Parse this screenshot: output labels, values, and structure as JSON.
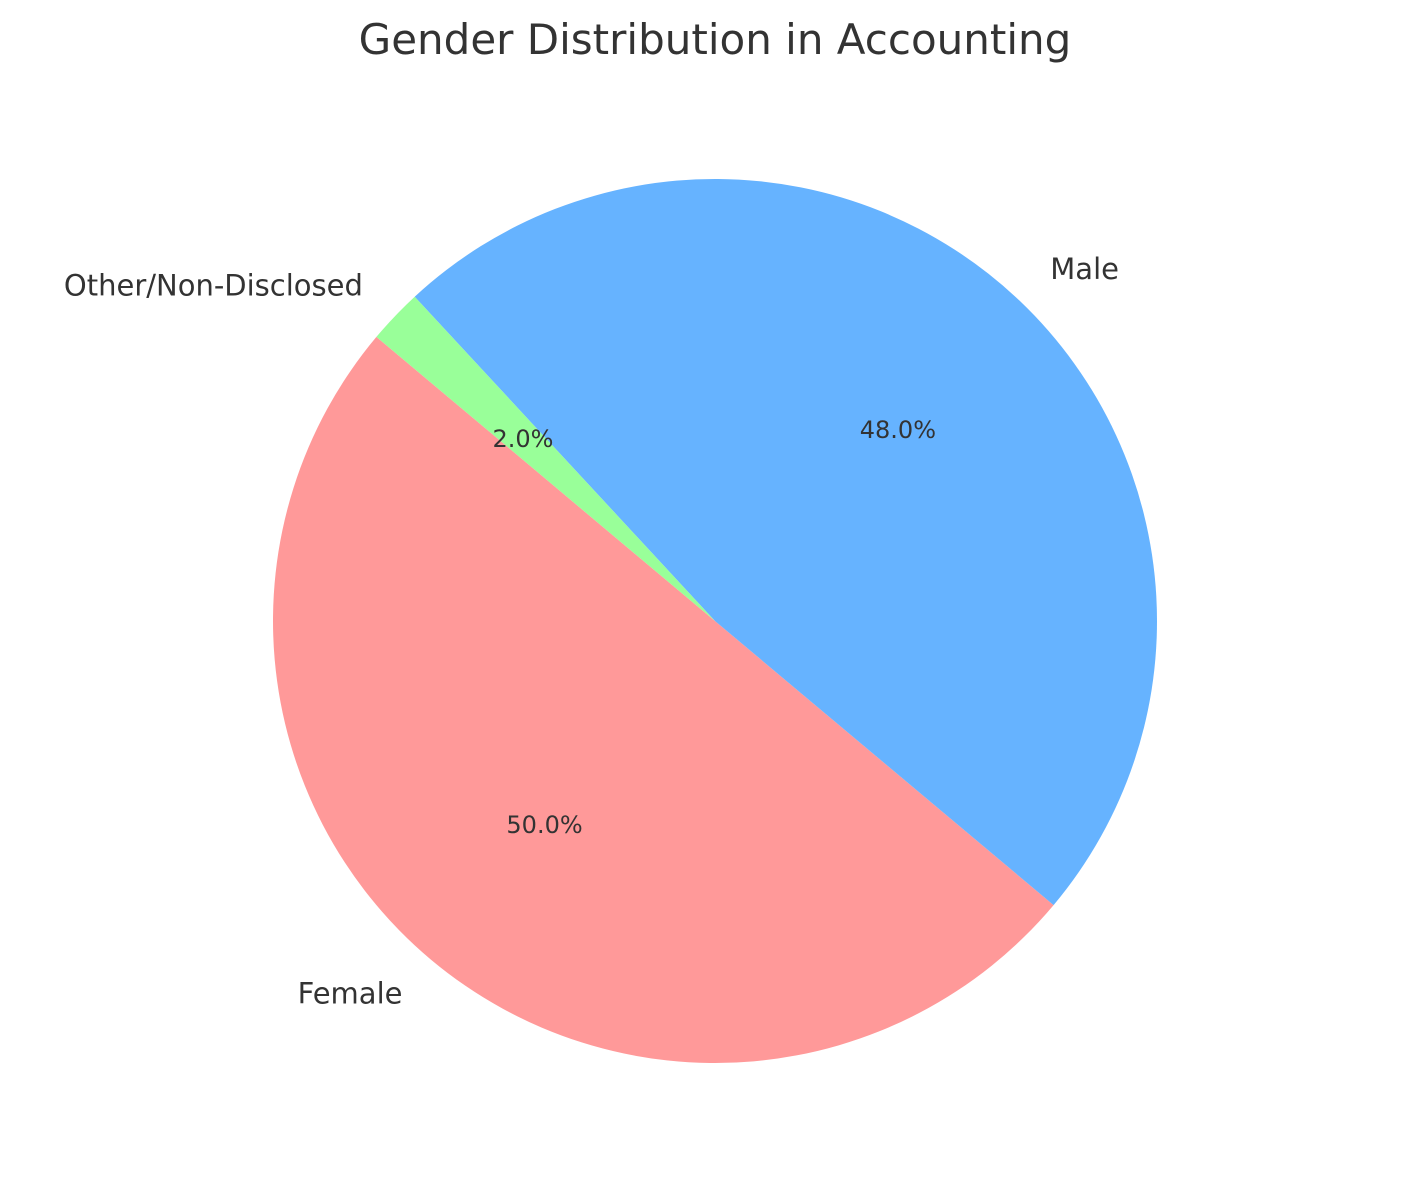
{
  "chart_data": {
    "type": "pie",
    "title": "Gender Distribution in Accounting",
    "categories": [
      "Female",
      "Male",
      "Other/Non-Disclosed"
    ],
    "values": [
      50.0,
      48.0,
      2.0
    ],
    "percent_labels": [
      "50.0%",
      "48.0%",
      "2.0%"
    ],
    "colors": [
      "#ff9999",
      "#66b3ff",
      "#99ff99"
    ],
    "start_angle": 140,
    "direction": "counterclockwise",
    "legend": "none"
  }
}
